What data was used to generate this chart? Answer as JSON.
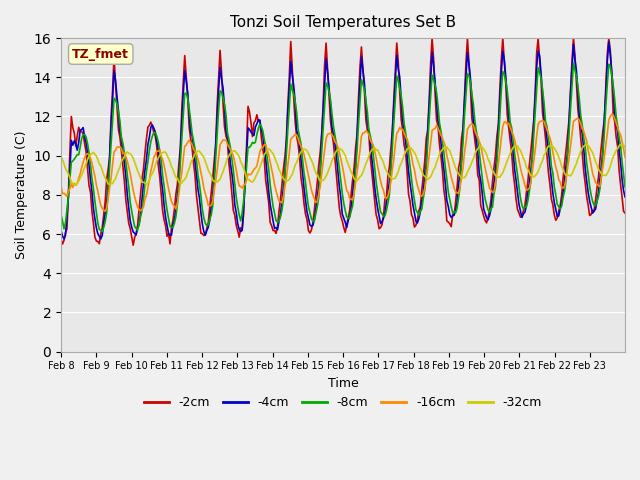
{
  "title": "Tonzi Soil Temperatures Set B",
  "xlabel": "Time",
  "ylabel": "Soil Temperature (C)",
  "ylim": [
    0,
    16
  ],
  "yticks": [
    0,
    2,
    4,
    6,
    8,
    10,
    12,
    14,
    16
  ],
  "date_labels": [
    "Feb 8",
    "Feb 9",
    "Feb 10",
    "Feb 11",
    "Feb 12",
    "Feb 13",
    "Feb 14",
    "Feb 15",
    "Feb 16",
    "Feb 17",
    "Feb 18",
    "Feb 19",
    "Feb 20",
    "Feb 21",
    "Feb 22",
    "Feb 23"
  ],
  "legend_label": "TZ_fmet",
  "series_labels": [
    "-2cm",
    "-4cm",
    "-8cm",
    "-16cm",
    "-32cm"
  ],
  "series_colors": [
    "#cc0000",
    "#0000cc",
    "#00aa00",
    "#ff8800",
    "#cccc00"
  ],
  "bg_color": "#e8e8e8"
}
